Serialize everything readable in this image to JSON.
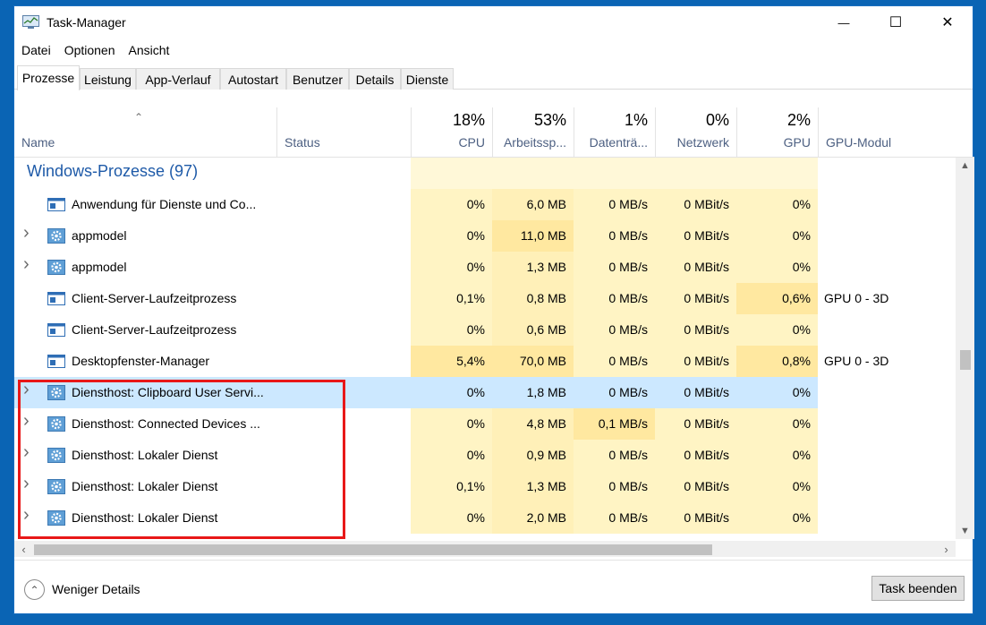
{
  "window": {
    "title": "Task-Manager",
    "minimize": "—",
    "maximize": "☐",
    "close": "✕"
  },
  "menu": [
    "Datei",
    "Optionen",
    "Ansicht"
  ],
  "tabs": [
    "Prozesse",
    "Leistung",
    "App-Verlauf",
    "Autostart",
    "Benutzer",
    "Details",
    "Dienste"
  ],
  "active_tab": "Prozesse",
  "columns": {
    "name": "Name",
    "status": "Status",
    "cpu": {
      "pct": "18%",
      "label": "CPU"
    },
    "mem": {
      "pct": "53%",
      "label": "Arbeitssp..."
    },
    "disk": {
      "pct": "1%",
      "label": "Datenträ..."
    },
    "net": {
      "pct": "0%",
      "label": "Netzwerk"
    },
    "gpu": {
      "pct": "2%",
      "label": "GPU"
    },
    "gpumod": "GPU-Modul"
  },
  "group": "Windows-Prozesse (97)",
  "rows": [
    {
      "name": "Anwendung für Dienste und Co...",
      "expand": false,
      "icon": "window-icon",
      "cpu": "0%",
      "mem": "6,0 MB",
      "disk": "0 MB/s",
      "net": "0 MBit/s",
      "gpu": "0%",
      "gpumod": ""
    },
    {
      "name": "appmodel",
      "expand": true,
      "icon": "gear-icon",
      "cpu": "0%",
      "mem": "11,0 MB",
      "disk": "0 MB/s",
      "net": "0 MBit/s",
      "gpu": "0%",
      "gpumod": ""
    },
    {
      "name": "appmodel",
      "expand": true,
      "icon": "gear-icon",
      "cpu": "0%",
      "mem": "1,3 MB",
      "disk": "0 MB/s",
      "net": "0 MBit/s",
      "gpu": "0%",
      "gpumod": ""
    },
    {
      "name": "Client-Server-Laufzeitprozess",
      "expand": false,
      "icon": "window-icon",
      "cpu": "0,1%",
      "mem": "0,8 MB",
      "disk": "0 MB/s",
      "net": "0 MBit/s",
      "gpu": "0,6%",
      "gpumod": "GPU 0 - 3D"
    },
    {
      "name": "Client-Server-Laufzeitprozess",
      "expand": false,
      "icon": "window-icon",
      "cpu": "0%",
      "mem": "0,6 MB",
      "disk": "0 MB/s",
      "net": "0 MBit/s",
      "gpu": "0%",
      "gpumod": ""
    },
    {
      "name": "Desktopfenster-Manager",
      "expand": false,
      "icon": "window-icon",
      "cpu": "5,4%",
      "mem": "70,0 MB",
      "disk": "0 MB/s",
      "net": "0 MBit/s",
      "gpu": "0,8%",
      "gpumod": "GPU 0 - 3D"
    },
    {
      "name": "Diensthost: Clipboard User Servi...",
      "expand": true,
      "icon": "gear-icon",
      "cpu": "0%",
      "mem": "1,8 MB",
      "disk": "0 MB/s",
      "net": "0 MBit/s",
      "gpu": "0%",
      "gpumod": "",
      "selected": true
    },
    {
      "name": "Diensthost: Connected Devices ...",
      "expand": true,
      "icon": "gear-icon",
      "cpu": "0%",
      "mem": "4,8 MB",
      "disk": "0,1 MB/s",
      "net": "0 MBit/s",
      "gpu": "0%",
      "gpumod": ""
    },
    {
      "name": "Diensthost: Lokaler Dienst",
      "expand": true,
      "icon": "gear-icon",
      "cpu": "0%",
      "mem": "0,9 MB",
      "disk": "0 MB/s",
      "net": "0 MBit/s",
      "gpu": "0%",
      "gpumod": ""
    },
    {
      "name": "Diensthost: Lokaler Dienst",
      "expand": true,
      "icon": "gear-icon",
      "cpu": "0,1%",
      "mem": "1,3 MB",
      "disk": "0 MB/s",
      "net": "0 MBit/s",
      "gpu": "0%",
      "gpumod": ""
    },
    {
      "name": "Diensthost: Lokaler Dienst",
      "expand": true,
      "icon": "gear-icon",
      "cpu": "0%",
      "mem": "2,0 MB",
      "disk": "0 MB/s",
      "net": "0 MBit/s",
      "gpu": "0%",
      "gpumod": ""
    }
  ],
  "footer": {
    "fewer_details": "Weniger Details",
    "end_task": "Task beenden"
  },
  "colors": {
    "heat_light": "#fff4c4",
    "heat_mid": "#ffe8a0",
    "selected": "#cce8ff",
    "highlight": "#e81818",
    "group": "#1e5aa8"
  }
}
